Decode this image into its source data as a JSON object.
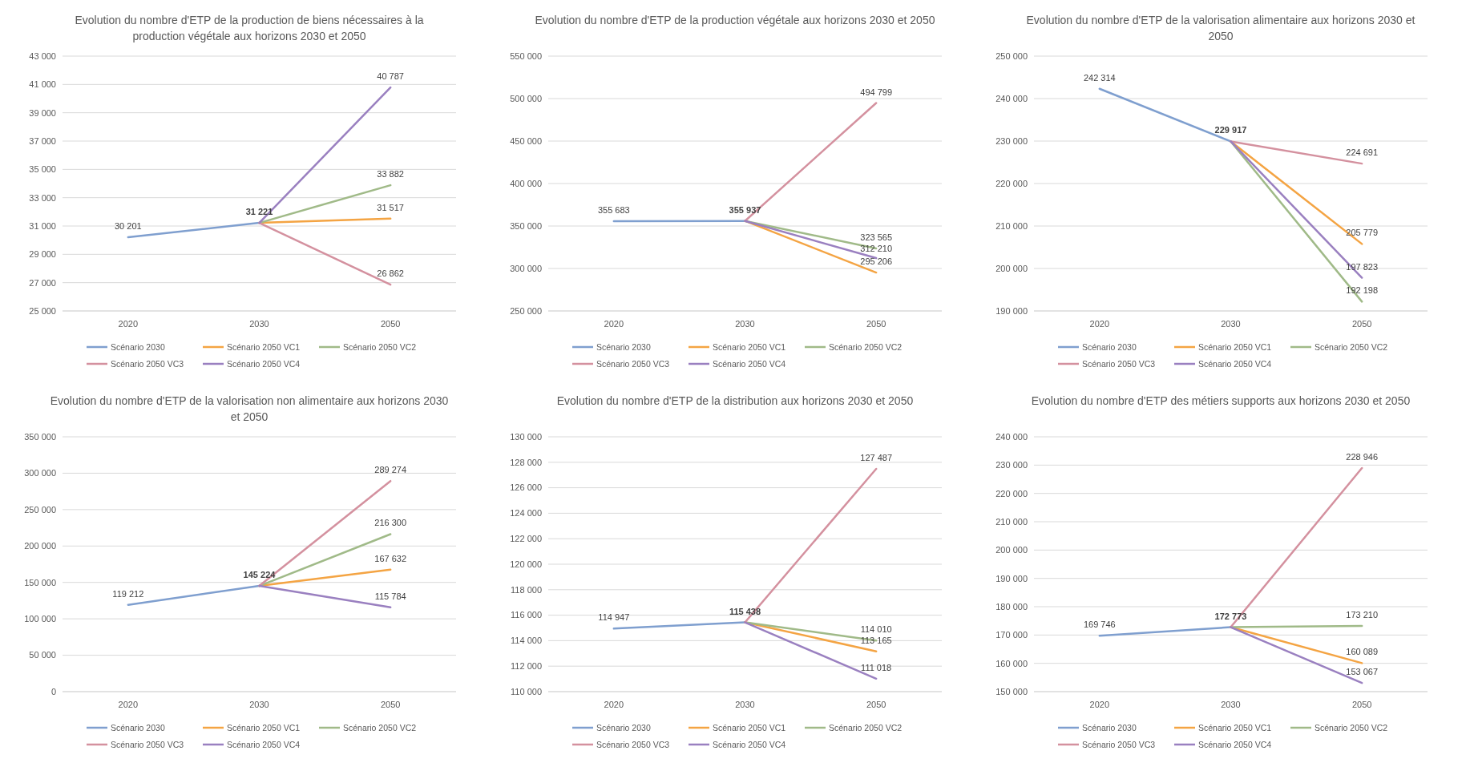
{
  "chart_data": [
    {
      "type": "line",
      "title": "Evolution du nombre d'ETP de la production de biens nécessaires à la production végétale aux horizons 2030 et 2050",
      "categories": [
        "2020",
        "2030",
        "2050"
      ],
      "ylim": [
        25000,
        43000
      ],
      "yticks": [
        {
          "value": 25000,
          "label": "25 000"
        },
        {
          "value": 27000,
          "label": "27 000"
        },
        {
          "value": 29000,
          "label": "29 000"
        },
        {
          "value": 31000,
          "label": "31 000"
        },
        {
          "value": 33000,
          "label": "33 000"
        },
        {
          "value": 35000,
          "label": "35 000"
        },
        {
          "value": 37000,
          "label": "37 000"
        },
        {
          "value": 39000,
          "label": "39 000"
        },
        {
          "value": 41000,
          "label": "41 000"
        },
        {
          "value": 43000,
          "label": "43 000"
        }
      ],
      "grid": "y",
      "legend": "bottom",
      "series": [
        {
          "name": "Scénario 2030",
          "color": "#7f9fcf",
          "values": [
            30201,
            31221,
            null
          ],
          "value_labels": [
            "30 201",
            "31 221",
            null
          ]
        },
        {
          "name": "Scénario 2050 VC1",
          "color": "#f4a443",
          "values": [
            null,
            31221,
            31517
          ],
          "value_labels": [
            null,
            null,
            "31 517"
          ]
        },
        {
          "name": "Scénario 2050 VC2",
          "color": "#a0ba88",
          "values": [
            null,
            31221,
            33882
          ],
          "value_labels": [
            null,
            null,
            "33 882"
          ]
        },
        {
          "name": "Scénario 2050 VC3",
          "color": "#d4919f",
          "values": [
            null,
            31221,
            26862
          ],
          "value_labels": [
            null,
            null,
            "26 862"
          ]
        },
        {
          "name": "Scénario 2050 VC4",
          "color": "#9a80c0",
          "values": [
            null,
            31221,
            40787
          ],
          "value_labels": [
            null,
            null,
            "40 787"
          ]
        }
      ]
    },
    {
      "type": "line",
      "title": "Evolution du nombre d'ETP de la production végétale aux horizons 2030 et 2050",
      "categories": [
        "2020",
        "2030",
        "2050"
      ],
      "ylim": [
        250000,
        550000
      ],
      "yticks": [
        {
          "value": 250000,
          "label": "250 000"
        },
        {
          "value": 300000,
          "label": "300 000"
        },
        {
          "value": 350000,
          "label": "350 000"
        },
        {
          "value": 400000,
          "label": "400 000"
        },
        {
          "value": 450000,
          "label": "450 000"
        },
        {
          "value": 500000,
          "label": "500 000"
        },
        {
          "value": 550000,
          "label": "550 000"
        }
      ],
      "grid": "y",
      "legend": "bottom",
      "series": [
        {
          "name": "Scénario 2030",
          "color": "#7f9fcf",
          "values": [
            355683,
            355937,
            null
          ],
          "value_labels": [
            "355 683",
            "355 937",
            null
          ]
        },
        {
          "name": "Scénario 2050 VC1",
          "color": "#f4a443",
          "values": [
            null,
            355937,
            295206
          ],
          "value_labels": [
            null,
            null,
            "295 206"
          ]
        },
        {
          "name": "Scénario 2050 VC2",
          "color": "#a0ba88",
          "values": [
            null,
            355937,
            323565
          ],
          "value_labels": [
            null,
            null,
            "323 565"
          ]
        },
        {
          "name": "Scénario 2050 VC3",
          "color": "#d4919f",
          "values": [
            null,
            355937,
            494799
          ],
          "value_labels": [
            null,
            null,
            "494 799"
          ]
        },
        {
          "name": "Scénario 2050 VC4",
          "color": "#9a80c0",
          "values": [
            null,
            355937,
            312210
          ],
          "value_labels": [
            null,
            null,
            "312 210"
          ]
        }
      ]
    },
    {
      "type": "line",
      "title": "Evolution du nombre d'ETP de la valorisation alimentaire aux horizons 2030 et 2050",
      "categories": [
        "2020",
        "2030",
        "2050"
      ],
      "ylim": [
        190000,
        250000
      ],
      "yticks": [
        {
          "value": 190000,
          "label": "190 000"
        },
        {
          "value": 200000,
          "label": "200 000"
        },
        {
          "value": 210000,
          "label": "210 000"
        },
        {
          "value": 220000,
          "label": "220 000"
        },
        {
          "value": 230000,
          "label": "230 000"
        },
        {
          "value": 240000,
          "label": "240 000"
        },
        {
          "value": 250000,
          "label": "250 000"
        }
      ],
      "grid": "y",
      "legend": "bottom",
      "series": [
        {
          "name": "Scénario 2030",
          "color": "#7f9fcf",
          "values": [
            242314,
            229917,
            null
          ],
          "value_labels": [
            "242 314",
            "229 917",
            null
          ]
        },
        {
          "name": "Scénario 2050 VC1",
          "color": "#f4a443",
          "values": [
            null,
            229917,
            205779
          ],
          "value_labels": [
            null,
            null,
            "205 779"
          ]
        },
        {
          "name": "Scénario 2050 VC2",
          "color": "#a0ba88",
          "values": [
            null,
            229917,
            192198
          ],
          "value_labels": [
            null,
            null,
            "192 198"
          ]
        },
        {
          "name": "Scénario 2050 VC3",
          "color": "#d4919f",
          "values": [
            null,
            229917,
            224691
          ],
          "value_labels": [
            null,
            null,
            "224 691"
          ]
        },
        {
          "name": "Scénario 2050 VC4",
          "color": "#9a80c0",
          "values": [
            null,
            229917,
            197823
          ],
          "value_labels": [
            null,
            null,
            "197 823"
          ]
        }
      ]
    },
    {
      "type": "line",
      "title": "Evolution du nombre d'ETP de la valorisation non alimentaire aux horizons 2030 et 2050",
      "categories": [
        "2020",
        "2030",
        "2050"
      ],
      "ylim": [
        0,
        350000
      ],
      "yticks": [
        0,
        {
          "value": 50000,
          "label": "50 000"
        },
        {
          "value": 100000,
          "label": "100 000"
        },
        {
          "value": 150000,
          "label": "150 000"
        },
        {
          "value": 200000,
          "label": "200 000"
        },
        {
          "value": 250000,
          "label": "250 000"
        },
        {
          "value": 300000,
          "label": "300 000"
        },
        {
          "value": 350000,
          "label": "350 000"
        }
      ],
      "grid": "y",
      "legend": "bottom",
      "series": [
        {
          "name": "Scénario 2030",
          "color": "#7f9fcf",
          "values": [
            119212,
            145224,
            null
          ],
          "value_labels": [
            "119 212",
            "145 224",
            null
          ]
        },
        {
          "name": "Scénario 2050 VC1",
          "color": "#f4a443",
          "values": [
            null,
            145224,
            167632
          ],
          "value_labels": [
            null,
            null,
            "167 632"
          ]
        },
        {
          "name": "Scénario 2050 VC2",
          "color": "#a0ba88",
          "values": [
            null,
            145224,
            216300
          ],
          "value_labels": [
            null,
            null,
            "216 300"
          ]
        },
        {
          "name": "Scénario 2050 VC3",
          "color": "#d4919f",
          "values": [
            null,
            145224,
            289274
          ],
          "value_labels": [
            null,
            null,
            "289 274"
          ]
        },
        {
          "name": "Scénario 2050 VC4",
          "color": "#9a80c0",
          "values": [
            null,
            145224,
            115784
          ],
          "value_labels": [
            null,
            null,
            "115 784"
          ]
        }
      ]
    },
    {
      "type": "line",
      "title": "Evolution du nombre d'ETP de la distribution aux horizons 2030 et 2050",
      "categories": [
        "2020",
        "2030",
        "2050"
      ],
      "ylim": [
        110000,
        130000
      ],
      "yticks": [
        {
          "value": 110000,
          "label": "110 000"
        },
        {
          "value": 112000,
          "label": "112 000"
        },
        {
          "value": 114000,
          "label": "114 000"
        },
        {
          "value": 116000,
          "label": "116 000"
        },
        {
          "value": 118000,
          "label": "118 000"
        },
        {
          "value": 120000,
          "label": "120 000"
        },
        {
          "value": 122000,
          "label": "122 000"
        },
        {
          "value": 124000,
          "label": "124 000"
        },
        {
          "value": 126000,
          "label": "126 000"
        },
        {
          "value": 128000,
          "label": "128 000"
        },
        {
          "value": 130000,
          "label": "130 000"
        }
      ],
      "grid": "y",
      "legend": "bottom",
      "series": [
        {
          "name": "Scénario 2030",
          "color": "#7f9fcf",
          "values": [
            114947,
            115438,
            null
          ],
          "value_labels": [
            "114 947",
            "115 438",
            null
          ]
        },
        {
          "name": "Scénario 2050 VC1",
          "color": "#f4a443",
          "values": [
            null,
            115438,
            113165
          ],
          "value_labels": [
            null,
            null,
            "113 165"
          ]
        },
        {
          "name": "Scénario 2050 VC2",
          "color": "#a0ba88",
          "values": [
            null,
            115438,
            114010
          ],
          "value_labels": [
            null,
            null,
            "114 010"
          ]
        },
        {
          "name": "Scénario 2050 VC3",
          "color": "#d4919f",
          "values": [
            null,
            115438,
            127487
          ],
          "value_labels": [
            null,
            null,
            "127 487"
          ]
        },
        {
          "name": "Scénario 2050 VC4",
          "color": "#9a80c0",
          "values": [
            null,
            115438,
            111018
          ],
          "value_labels": [
            null,
            null,
            "111 018"
          ]
        }
      ]
    },
    {
      "type": "line",
      "title": "Evolution du nombre d'ETP des métiers supports aux horizons 2030 et 2050",
      "categories": [
        "2020",
        "2030",
        "2050"
      ],
      "ylim": [
        150000,
        240000
      ],
      "yticks": [
        {
          "value": 150000,
          "label": "150 000"
        },
        {
          "value": 160000,
          "label": "160 000"
        },
        {
          "value": 170000,
          "label": "170 000"
        },
        {
          "value": 180000,
          "label": "180 000"
        },
        {
          "value": 190000,
          "label": "190 000"
        },
        {
          "value": 200000,
          "label": "200 000"
        },
        {
          "value": 210000,
          "label": "210 000"
        },
        {
          "value": 220000,
          "label": "220 000"
        },
        {
          "value": 230000,
          "label": "230 000"
        },
        {
          "value": 240000,
          "label": "240 000"
        }
      ],
      "grid": "y",
      "legend": "bottom",
      "series": [
        {
          "name": "Scénario 2030",
          "color": "#7f9fcf",
          "values": [
            169746,
            172773,
            null
          ],
          "value_labels": [
            "169 746",
            "172 773",
            null
          ]
        },
        {
          "name": "Scénario 2050 VC1",
          "color": "#f4a443",
          "values": [
            null,
            172773,
            160089
          ],
          "value_labels": [
            null,
            null,
            "160 089"
          ]
        },
        {
          "name": "Scénario 2050 VC2",
          "color": "#a0ba88",
          "values": [
            null,
            172773,
            173210
          ],
          "value_labels": [
            null,
            null,
            "173 210"
          ]
        },
        {
          "name": "Scénario 2050 VC3",
          "color": "#d4919f",
          "values": [
            null,
            172773,
            228946
          ],
          "value_labels": [
            null,
            null,
            "228 946"
          ]
        },
        {
          "name": "Scénario 2050 VC4",
          "color": "#9a80c0",
          "values": [
            null,
            172773,
            153067
          ],
          "value_labels": [
            null,
            null,
            "153 067"
          ]
        }
      ]
    }
  ]
}
